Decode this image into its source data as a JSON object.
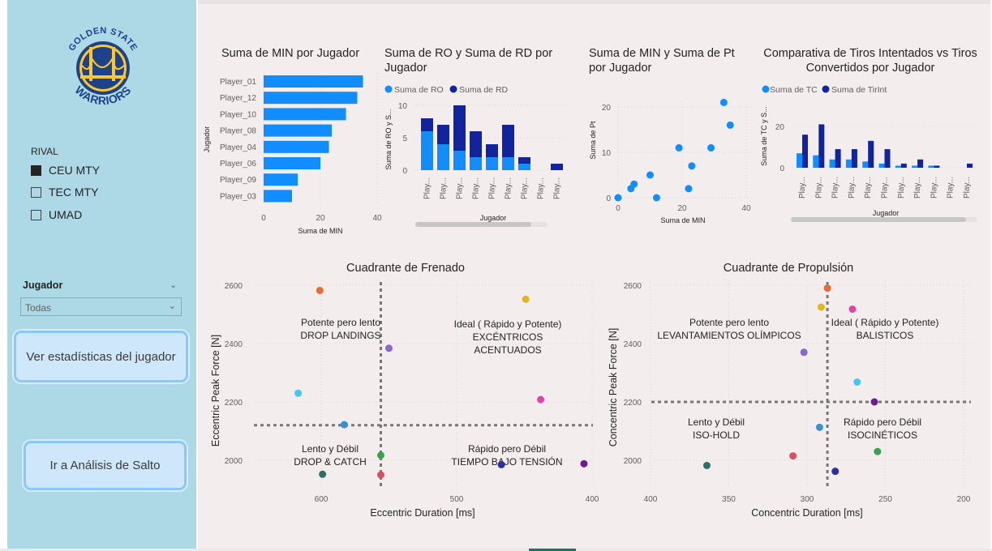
{
  "sidebar": {
    "logo": {
      "top_text": "GOLDEN STATE",
      "bottom_text": "WARRIORS",
      "colors": {
        "blue": "#1d428a",
        "gold": "#ffc72c"
      }
    },
    "rival_filter": {
      "label": "RIVAL",
      "options": [
        {
          "label": "CEU MTY",
          "checked": true
        },
        {
          "label": "TEC MTY",
          "checked": false
        },
        {
          "label": "UMAD",
          "checked": false
        }
      ]
    },
    "jugador_filter": {
      "label": "Jugador",
      "value": "Todas",
      "icon": "chevron-down-icon"
    },
    "buttons": {
      "stats": "Ver estadísticas del jugador",
      "jump": "Ir a Análisis de Salto"
    }
  },
  "colors": {
    "light_blue": "#118dff",
    "dark_blue": "#12239e",
    "sidebar_bg": "#add8e6",
    "canvas_bg": "#f3eded"
  },
  "charts": {
    "min_by_player": {
      "title": "Suma de MIN por Jugador",
      "ylabel": "Jugador",
      "xlabel": "Suma de MIN",
      "xticks": [
        "0",
        "20",
        "40"
      ]
    },
    "ro_rd": {
      "title": "Suma de RO y Suma de RD por Jugador",
      "legend": [
        "Suma de RO",
        "Suma de RD"
      ],
      "ylabel": "Suma de RO y S...",
      "xlabel": "Jugador",
      "yticks": [
        "0",
        "5",
        "10"
      ],
      "cat_label": "Play..."
    },
    "min_pt": {
      "title": "Suma de MIN y Suma de Pt por Jugador",
      "ylabel": "Suma de Pt",
      "xlabel": "Suma de MIN",
      "xticks": [
        "0",
        "20",
        "40"
      ],
      "yticks": [
        "0",
        "10",
        "20"
      ]
    },
    "tiros": {
      "title": "Comparativa de Tiros Intentados vs Tiros Convertidos por Jugador",
      "legend": [
        "Suma de TC",
        "Suma de TirInt"
      ],
      "ylabel": "Suma de TC y S...",
      "xlabel": "Jugador",
      "yticks": [
        "0",
        "20"
      ],
      "cat_label": "Play..."
    },
    "frenado": {
      "title": "Cuadrante de Frenado",
      "xlabel": "Eccentric Duration [ms]",
      "ylabel": "Eccentric Peak Force [N]",
      "xticks": [
        "600",
        "500",
        "400"
      ],
      "yticks": [
        "2000",
        "2200",
        "2400",
        "2600"
      ],
      "quadrants": {
        "tl": [
          "Potente pero lento",
          "DROP LANDINGS"
        ],
        "tr": [
          "Ideal ( Rápido y Potente)",
          "EXCÉNTRICOS",
          "ACENTUADOS"
        ],
        "bl": [
          "Lento y Débil",
          "DROP & CATCH"
        ],
        "br": [
          "Rápido pero Débil",
          "TIEMPO BAJO TENSIÓN"
        ]
      }
    },
    "propulsion": {
      "title": "Cuadrante de Propulsión",
      "xlabel": "Concentric Duration [ms]",
      "ylabel": "Concentric Peak Force [N]",
      "xticks": [
        "400",
        "350",
        "300",
        "250",
        "200"
      ],
      "yticks": [
        "2000",
        "2200",
        "2400",
        "2600"
      ],
      "quadrants": {
        "tl": [
          "Potente pero lento",
          "LEVANTAMIENTOS OLÍMPICOS"
        ],
        "tr": [
          "Ideal ( Rápido y Potente)",
          "BALISTICOS"
        ],
        "bl": [
          "Lento y Débil",
          "ISO-HOLD"
        ],
        "br": [
          "Rápido pero Débil",
          "ISOCINÉTICOS"
        ]
      }
    }
  },
  "chart_data": [
    {
      "type": "bar",
      "orientation": "horizontal",
      "title": "Suma de MIN por Jugador",
      "xlabel": "Suma de MIN",
      "ylabel": "Jugador",
      "categories": [
        "Player_01",
        "Player_12",
        "Player_10",
        "Player_08",
        "Player_04",
        "Player_06",
        "Player_09",
        "Player_03"
      ],
      "values": [
        35,
        33,
        29,
        24,
        23,
        20,
        12,
        10
      ],
      "xlim": [
        0,
        40
      ]
    },
    {
      "type": "bar",
      "stacked": true,
      "title": "Suma de RO y Suma de RD por Jugador",
      "xlabel": "Jugador",
      "ylabel": "Suma de RO y S...",
      "categories": [
        "Play...",
        "Play...",
        "Play...",
        "Play...",
        "Play...",
        "Play...",
        "Play...",
        "Play...",
        "Play..."
      ],
      "series": [
        {
          "name": "Suma de RO",
          "values": [
            6,
            4,
            3,
            2,
            2,
            2,
            1,
            0,
            0
          ]
        },
        {
          "name": "Suma de RD",
          "values": [
            2,
            3,
            7,
            4,
            2,
            5,
            1,
            0,
            1
          ]
        }
      ],
      "ylim": [
        0,
        11
      ]
    },
    {
      "type": "scatter",
      "title": "Suma de MIN y Suma de Pt por Jugador",
      "xlabel": "Suma de MIN",
      "ylabel": "Suma de Pt",
      "x": [
        0,
        4,
        5,
        10,
        12,
        19,
        22,
        23,
        29,
        33,
        35
      ],
      "y": [
        0,
        2,
        3,
        5,
        0,
        11,
        2,
        7,
        11,
        21,
        16
      ],
      "xlim": [
        0,
        40
      ],
      "ylim": [
        0,
        25
      ]
    },
    {
      "type": "bar",
      "title": "Comparativa de Tiros Intentados vs Tiros Convertidos por Jugador",
      "xlabel": "Jugador",
      "ylabel": "Suma de TC y S...",
      "categories": [
        "Play...",
        "Play...",
        "Play...",
        "Play...",
        "Play...",
        "Play...",
        "Play...",
        "Play...",
        "Play...",
        "Play...",
        "Play..."
      ],
      "series": [
        {
          "name": "Suma de TC",
          "values": [
            7,
            6,
            4,
            4,
            3,
            2,
            1,
            1,
            1,
            0,
            0
          ]
        },
        {
          "name": "Suma de TirInt",
          "values": [
            16,
            21,
            9,
            9,
            13,
            9,
            2,
            4,
            1,
            0,
            2
          ]
        }
      ],
      "ylim": [
        0,
        30
      ]
    },
    {
      "type": "scatter",
      "title": "Cuadrante de Frenado",
      "xlabel": "Eccentric Duration [ms]",
      "ylabel": "Eccentric Peak Force [N]",
      "x_reversed": true,
      "xlim": [
        620,
        400
      ],
      "ylim": [
        1950,
        2650
      ],
      "reference_lines": {
        "x": 556,
        "y": 2120
      },
      "points": [
        {
          "x": 601,
          "y": 2582,
          "color": "#e66c37"
        },
        {
          "x": 550,
          "y": 2384,
          "color": "#8765d3"
        },
        {
          "x": 449,
          "y": 2552,
          "color": "#e0b51f"
        },
        {
          "x": 617,
          "y": 2230,
          "color": "#41c8f0"
        },
        {
          "x": 438,
          "y": 2208,
          "color": "#e044a7"
        },
        {
          "x": 583,
          "y": 2122,
          "color": "#3b8fd1"
        },
        {
          "x": 556,
          "y": 2017,
          "color": "#37a34a"
        },
        {
          "x": 599,
          "y": 1952,
          "color": "#2c6f6c"
        },
        {
          "x": 556,
          "y": 1950,
          "color": "#d9515f"
        },
        {
          "x": 467,
          "y": 1985,
          "color": "#2b2fa3"
        },
        {
          "x": 406,
          "y": 1988,
          "color": "#6b1e8f"
        }
      ]
    },
    {
      "type": "scatter",
      "title": "Cuadrante de Propulsión",
      "xlabel": "Concentric Duration [ms]",
      "ylabel": "Concentric Peak Force [N]",
      "x_reversed": true,
      "xlim": [
        400,
        200
      ],
      "ylim": [
        1950,
        2650
      ],
      "reference_lines": {
        "x": 287,
        "y": 2200
      },
      "points": [
        {
          "x": 287,
          "y": 2590,
          "color": "#e66c37"
        },
        {
          "x": 291,
          "y": 2525,
          "color": "#e0b51f"
        },
        {
          "x": 271,
          "y": 2518,
          "color": "#e044a7"
        },
        {
          "x": 302,
          "y": 2370,
          "color": "#8765d3"
        },
        {
          "x": 268,
          "y": 2268,
          "color": "#41c8f0"
        },
        {
          "x": 257,
          "y": 2200,
          "color": "#6b1e8f"
        },
        {
          "x": 292,
          "y": 2113,
          "color": "#3b8fd1"
        },
        {
          "x": 255,
          "y": 2030,
          "color": "#37a34a"
        },
        {
          "x": 309,
          "y": 2015,
          "color": "#d9515f"
        },
        {
          "x": 364,
          "y": 1982,
          "color": "#2c6f6c"
        },
        {
          "x": 282,
          "y": 1962,
          "color": "#2b2fa3"
        }
      ]
    }
  ]
}
